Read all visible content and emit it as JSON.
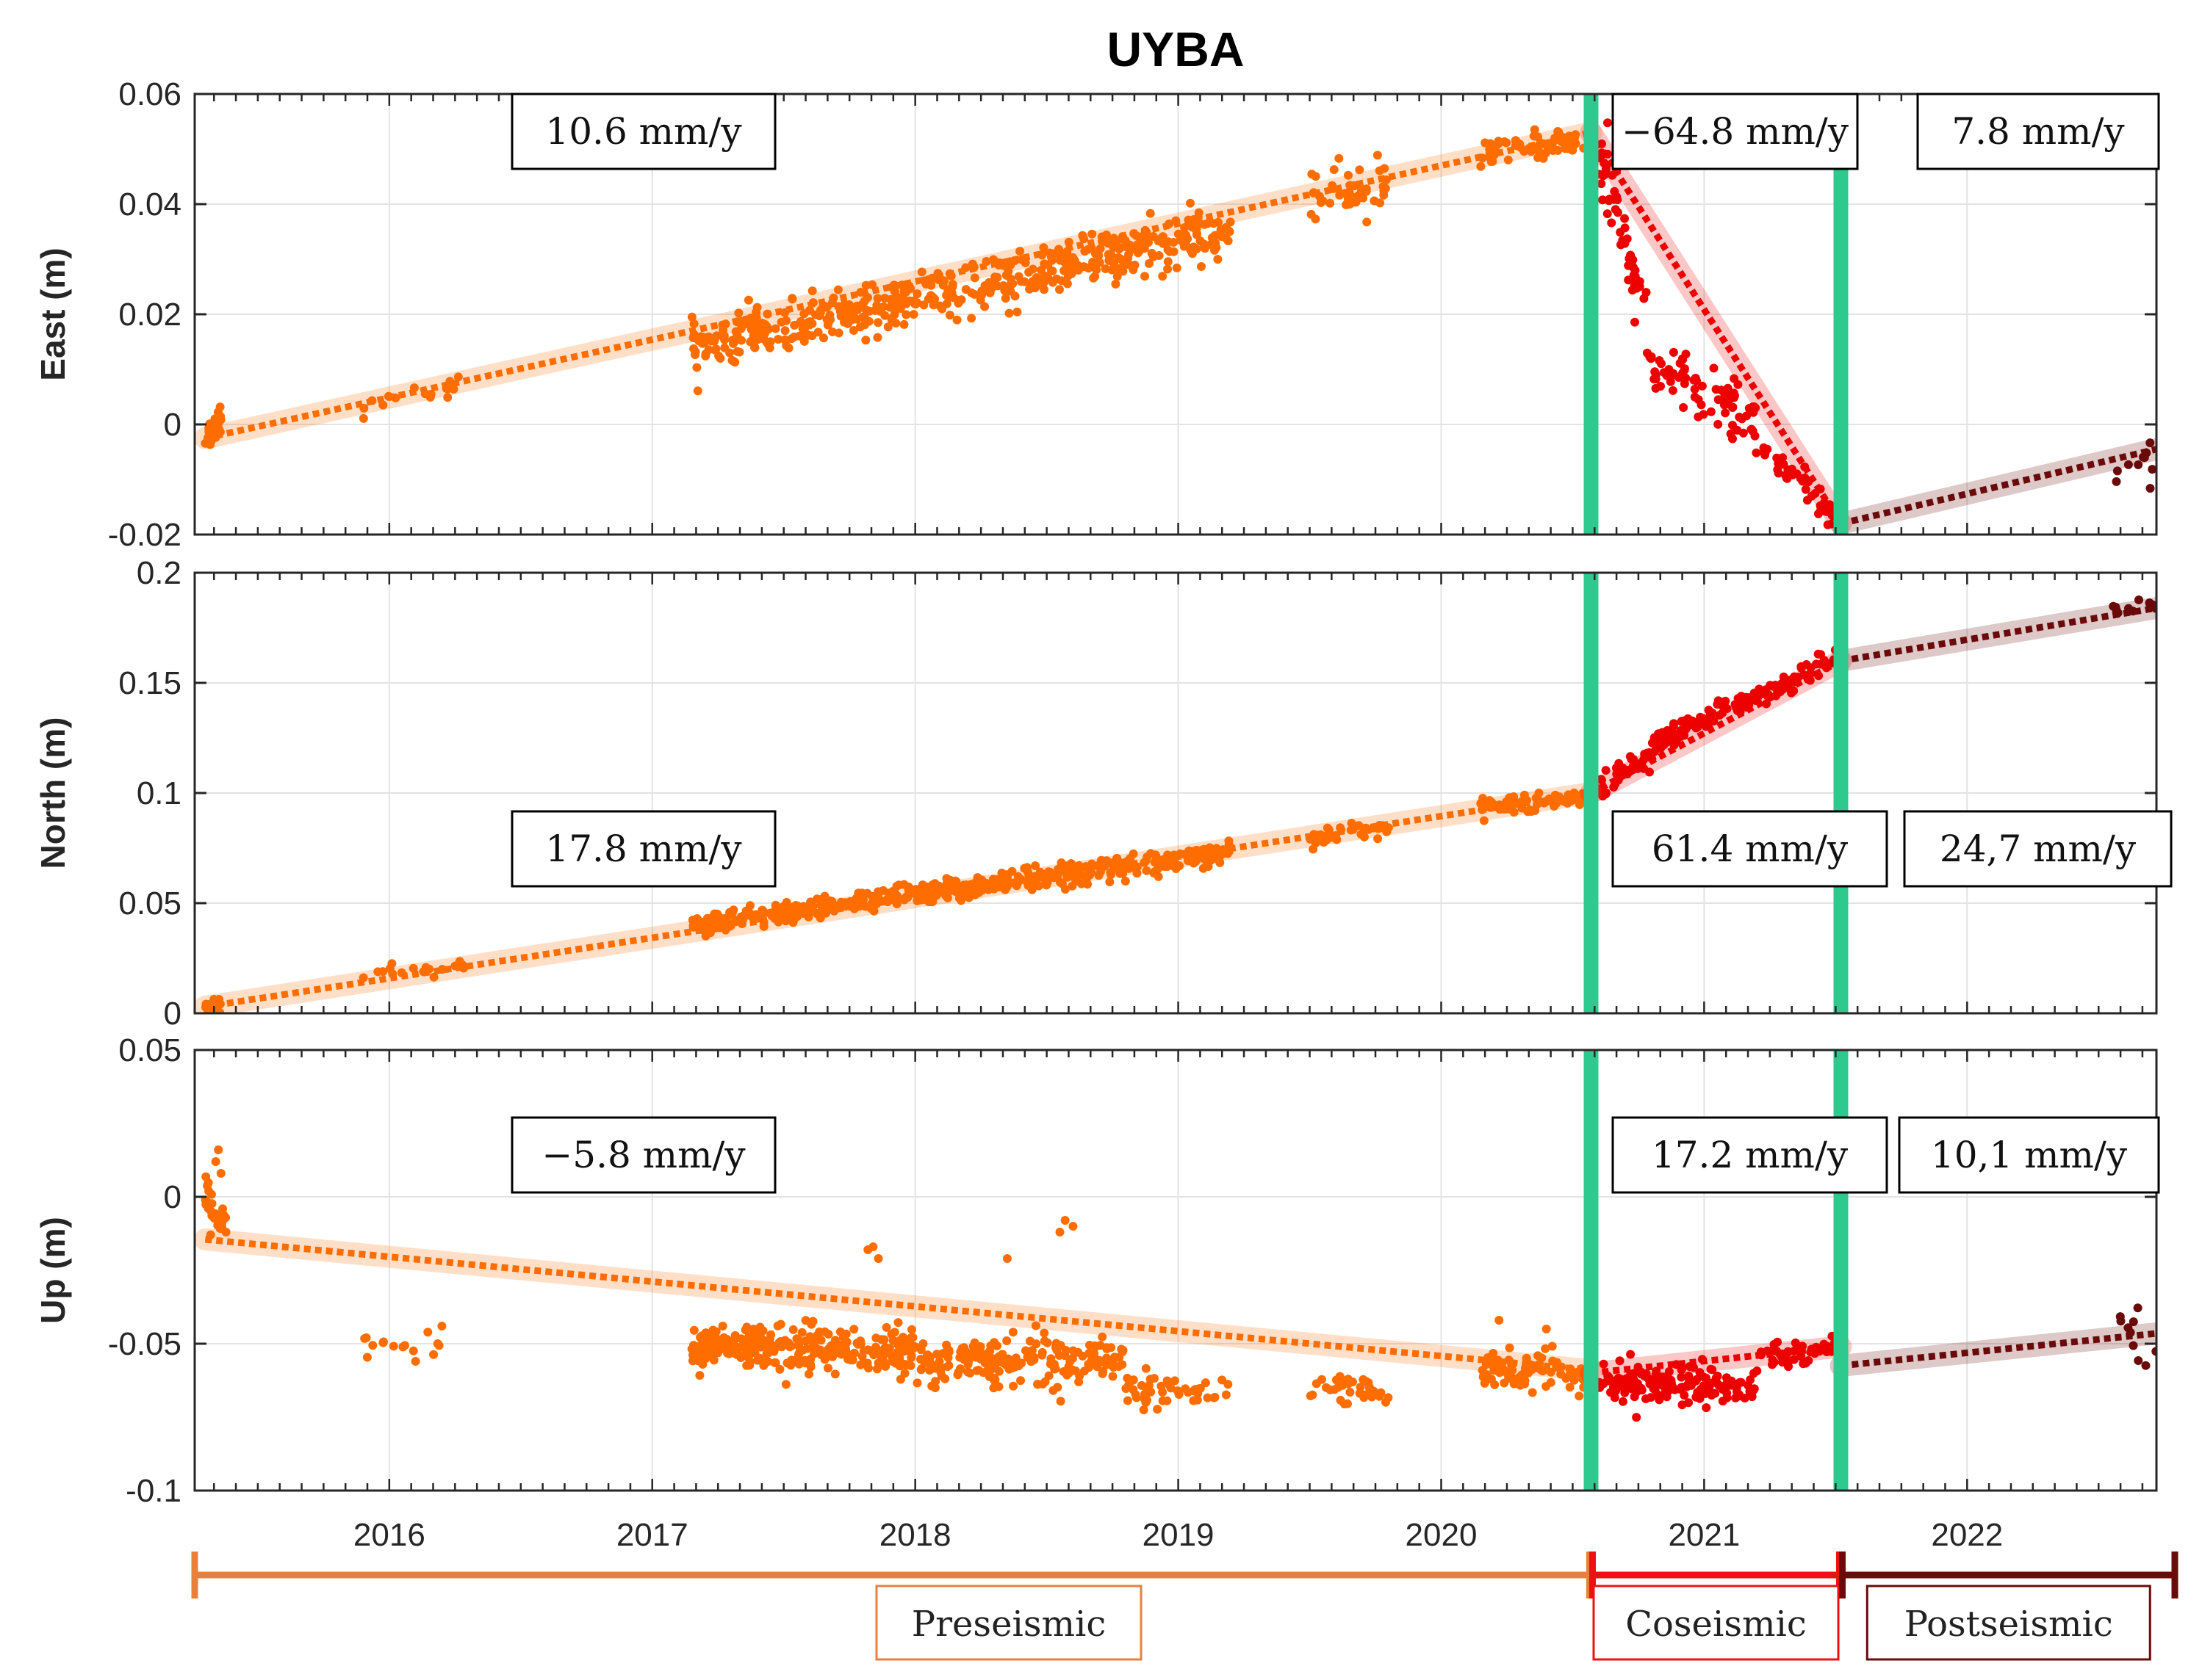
{
  "chart_data": {
    "type": "scatter",
    "title": "UYBA",
    "x_range": [
      2015.26,
      2022.72
    ],
    "x_ticks": [
      2016,
      2017,
      2018,
      2019,
      2020,
      2021,
      2022
    ],
    "event_lines": [
      2020.57,
      2021.52
    ],
    "colors": {
      "preseismic": "#ff6d00",
      "coseismic": "#ee0000",
      "postseismic": "#6b0a0a",
      "event_line": "#2ec98e",
      "phase_pre": "#e8803c",
      "phase_co": "#ee1111",
      "phase_post": "#6b0a0a"
    },
    "panels": [
      {
        "id": "east",
        "ylabel": "East (m)",
        "ylim": [
          -0.02,
          0.06
        ],
        "y_ticks": [
          -0.02,
          0,
          0.02,
          0.04,
          0.06
        ],
        "y_tick_labels": [
          "-0.02",
          "0",
          "0.02",
          "0.04",
          "0.06"
        ],
        "rates": [
          "10.6 mm/y",
          "−64.8 mm/y",
          "7.8 mm/y"
        ],
        "fits": [
          {
            "phase": "preseismic",
            "x": [
              2015.3,
              2020.57
            ],
            "y": [
              -0.0025,
              0.053
            ]
          },
          {
            "phase": "coseismic",
            "x": [
              2020.57,
              2021.52
            ],
            "y": [
              0.053,
              -0.018
            ]
          },
          {
            "phase": "postseismic",
            "x": [
              2021.52,
              2022.72
            ],
            "y": [
              -0.018,
              -0.0045
            ]
          }
        ],
        "clusters": [
          {
            "phase": "preseismic",
            "x": [
              2015.3,
              2015.36
            ],
            "y": [
              -0.003,
              0.0015
            ],
            "spread": 0.0015,
            "n": 28
          },
          {
            "phase": "preseismic",
            "x": [
              2015.9,
              2016.3
            ],
            "y": [
              0.0035,
              0.0075
            ],
            "spread": 0.0015,
            "n": 16
          },
          {
            "phase": "preseismic",
            "x": [
              2017.15,
              2019.2
            ],
            "y": [
              0.0135,
              0.0355
            ],
            "spread": 0.0022,
            "n": 520
          },
          {
            "phase": "preseismic",
            "x": [
              2019.5,
              2019.8
            ],
            "y": [
              0.042,
              0.043
            ],
            "spread": 0.0025,
            "n": 46
          },
          {
            "phase": "preseismic",
            "x": [
              2020.15,
              2020.55
            ],
            "y": [
              0.049,
              0.052
            ],
            "spread": 0.0012,
            "n": 70
          },
          {
            "phase": "coseismic",
            "x": [
              2020.6,
              2020.78
            ],
            "y": [
              0.049,
              0.02
            ],
            "spread": 0.0035,
            "n": 50
          },
          {
            "phase": "coseismic",
            "x": [
              2020.78,
              2021.2
            ],
            "y": [
              0.012,
              0.0
            ],
            "spread": 0.0025,
            "n": 80
          },
          {
            "phase": "coseismic",
            "x": [
              2021.2,
              2021.5
            ],
            "y": [
              -0.003,
              -0.017
            ],
            "spread": 0.0015,
            "n": 45
          },
          {
            "phase": "postseismic",
            "x": [
              2022.55,
              2022.72
            ],
            "y": [
              -0.009,
              -0.006
            ],
            "spread": 0.003,
            "n": 10
          }
        ]
      },
      {
        "id": "north",
        "ylabel": "North (m)",
        "ylim": [
          0,
          0.2
        ],
        "y_ticks": [
          0,
          0.05,
          0.1,
          0.15,
          0.2
        ],
        "y_tick_labels": [
          "0",
          "0.05",
          "0.1",
          "0.15",
          "0.2"
        ],
        "rates": [
          "17.8 mm/y",
          "61.4 mm/y",
          "24,7 mm/y"
        ],
        "fits": [
          {
            "phase": "preseismic",
            "x": [
              2015.3,
              2020.57
            ],
            "y": [
              0.003,
              0.1
            ]
          },
          {
            "phase": "coseismic",
            "x": [
              2020.57,
              2021.52
            ],
            "y": [
              0.1,
              0.16
            ]
          },
          {
            "phase": "postseismic",
            "x": [
              2021.52,
              2022.72
            ],
            "y": [
              0.16,
              0.184
            ]
          }
        ],
        "clusters": [
          {
            "phase": "preseismic",
            "x": [
              2015.3,
              2015.36
            ],
            "y": [
              0.001,
              0.005
            ],
            "spread": 0.002,
            "n": 26
          },
          {
            "phase": "preseismic",
            "x": [
              2015.9,
              2016.3
            ],
            "y": [
              0.018,
              0.021
            ],
            "spread": 0.002,
            "n": 18
          },
          {
            "phase": "preseismic",
            "x": [
              2017.15,
              2019.2
            ],
            "y": [
              0.04,
              0.073
            ],
            "spread": 0.0025,
            "n": 480
          },
          {
            "phase": "preseismic",
            "x": [
              2019.5,
              2019.8
            ],
            "y": [
              0.08,
              0.084
            ],
            "spread": 0.002,
            "n": 40
          },
          {
            "phase": "preseismic",
            "x": [
              2020.15,
              2020.55
            ],
            "y": [
              0.094,
              0.098
            ],
            "spread": 0.002,
            "n": 65
          },
          {
            "phase": "coseismic",
            "x": [
              2020.6,
              2020.9
            ],
            "y": [
              0.101,
              0.128
            ],
            "spread": 0.003,
            "n": 70
          },
          {
            "phase": "coseismic",
            "x": [
              2020.9,
              2021.5
            ],
            "y": [
              0.129,
              0.16
            ],
            "spread": 0.0025,
            "n": 110
          },
          {
            "phase": "postseismic",
            "x": [
              2022.55,
              2022.72
            ],
            "y": [
              0.183,
              0.184
            ],
            "spread": 0.0015,
            "n": 12
          }
        ]
      },
      {
        "id": "up",
        "ylabel": "Up (m)",
        "ylim": [
          -0.1,
          0.05
        ],
        "y_ticks": [
          -0.1,
          -0.05,
          0,
          0.05
        ],
        "y_tick_labels": [
          "-0.1",
          "-0.05",
          "0",
          "0.05"
        ],
        "rates": [
          "−5.8 mm/y",
          "17.2 mm/y",
          "10,1 mm/y"
        ],
        "fits": [
          {
            "phase": "preseismic",
            "x": [
              2015.3,
              2020.57
            ],
            "y": [
              -0.0145,
              -0.059
            ]
          },
          {
            "phase": "coseismic",
            "x": [
              2020.57,
              2021.52
            ],
            "y": [
              -0.06,
              -0.051
            ]
          },
          {
            "phase": "postseismic",
            "x": [
              2021.52,
              2022.72
            ],
            "y": [
              -0.0575,
              -0.0465
            ]
          }
        ],
        "clusters": [
          {
            "phase": "preseismic",
            "x": [
              2015.3,
              2015.38
            ],
            "y": [
              0.0,
              -0.012
            ],
            "spread": 0.004,
            "n": 30
          },
          {
            "phase": "preseismic",
            "x": [
              2015.9,
              2016.2
            ],
            "y": [
              -0.051,
              -0.053
            ],
            "spread": 0.003,
            "n": 14
          },
          {
            "phase": "preseismic",
            "x": [
              2017.15,
              2018.0
            ],
            "y": [
              -0.051,
              -0.053
            ],
            "spread": 0.004,
            "n": 300
          },
          {
            "phase": "preseismic",
            "x": [
              2018.0,
              2018.8
            ],
            "y": [
              -0.057,
              -0.056
            ],
            "spread": 0.004,
            "n": 200
          },
          {
            "phase": "preseismic",
            "x": [
              2018.8,
              2019.2
            ],
            "y": [
              -0.064,
              -0.068
            ],
            "spread": 0.003,
            "n": 50
          },
          {
            "phase": "preseismic",
            "x": [
              2019.5,
              2019.8
            ],
            "y": [
              -0.062,
              -0.068
            ],
            "spread": 0.003,
            "n": 40
          },
          {
            "phase": "preseismic",
            "x": [
              2020.15,
              2020.55
            ],
            "y": [
              -0.058,
              -0.06
            ],
            "spread": 0.003,
            "n": 80
          },
          {
            "phase": "coseismic",
            "x": [
              2020.6,
              2021.2
            ],
            "y": [
              -0.063,
              -0.064
            ],
            "spread": 0.0035,
            "n": 160
          },
          {
            "phase": "coseismic",
            "x": [
              2021.2,
              2021.5
            ],
            "y": [
              -0.056,
              -0.051
            ],
            "spread": 0.0025,
            "n": 45
          },
          {
            "phase": "postseismic",
            "x": [
              2022.55,
              2022.72
            ],
            "y": [
              -0.046,
              -0.05
            ],
            "spread": 0.004,
            "n": 10
          }
        ],
        "outliers": [
          {
            "x": 2015.35,
            "y": 0.016
          },
          {
            "x": 2015.34,
            "y": 0.012
          },
          {
            "x": 2015.36,
            "y": 0.008
          },
          {
            "x": 2017.82,
            "y": -0.018
          },
          {
            "x": 2017.86,
            "y": -0.021
          },
          {
            "x": 2017.84,
            "y": -0.017
          },
          {
            "x": 2018.55,
            "y": -0.012
          },
          {
            "x": 2018.57,
            "y": -0.008
          },
          {
            "x": 2018.6,
            "y": -0.01
          },
          {
            "x": 2018.35,
            "y": -0.021
          },
          {
            "x": 2020.22,
            "y": -0.042
          },
          {
            "x": 2020.4,
            "y": -0.045
          },
          {
            "x": 2016.2,
            "y": -0.044
          },
          {
            "x": 2016.1,
            "y": -0.056
          }
        ]
      }
    ],
    "phases": [
      {
        "id": "pre",
        "label": "Preseismic",
        "x": [
          2015.26,
          2020.57
        ]
      },
      {
        "id": "co",
        "label": "Coseismic",
        "x": [
          2020.57,
          2021.52
        ]
      },
      {
        "id": "post",
        "label": "Postseismic",
        "x": [
          2021.52,
          2022.72
        ]
      }
    ]
  }
}
